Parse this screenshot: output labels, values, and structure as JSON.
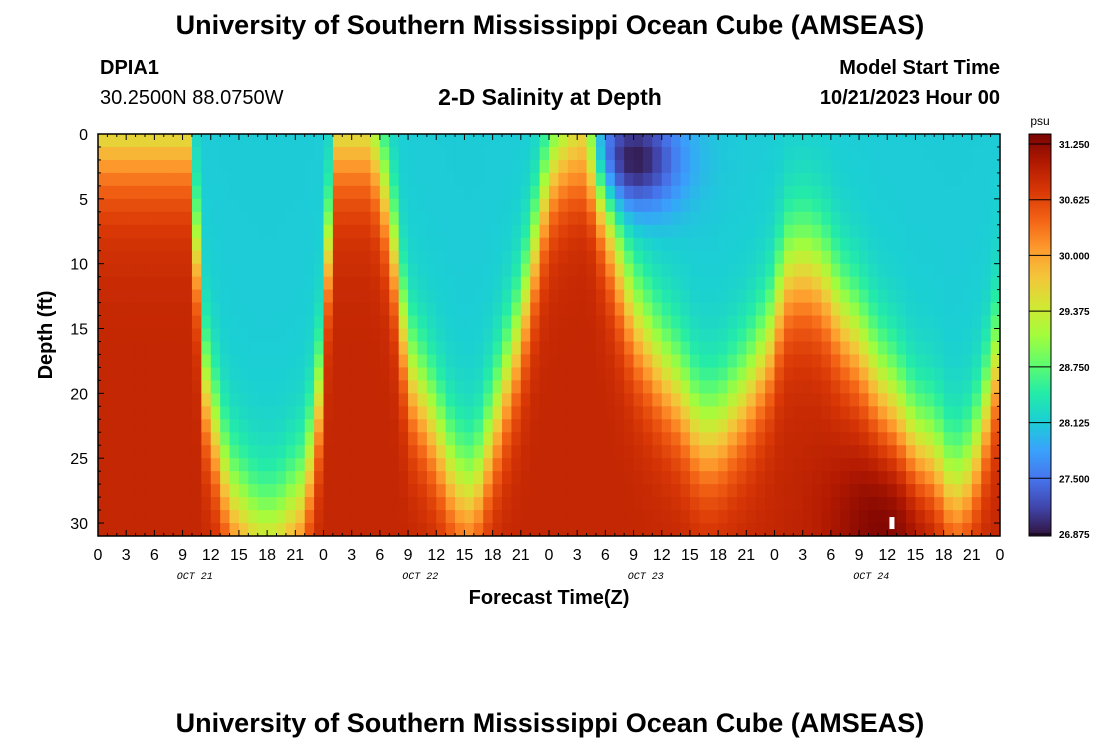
{
  "header": {
    "title": "University of Southern Mississippi Ocean Cube (AMSEAS)",
    "station_name": "DPIA1",
    "station_coords": "30.2500N  88.0750W",
    "plot_title": "2-D Salinity at Depth",
    "start_label": "Model Start Time",
    "start_value": "10/21/2023 Hour 00"
  },
  "footer": {
    "title": "University of Southern Mississippi Ocean Cube (AMSEAS)"
  },
  "chart_data": {
    "type": "heatmap",
    "title": "2-D Salinity at Depth",
    "xlabel": "Forecast Time(Z)",
    "ylabel": "Depth (ft)",
    "x_range_hours": [
      0,
      96
    ],
    "y_range_ft": [
      0,
      31
    ],
    "y_inverted": true,
    "x_ticks": [
      "0",
      "3",
      "6",
      "9",
      "12",
      "15",
      "18",
      "21",
      "0",
      "3",
      "6",
      "9",
      "12",
      "15",
      "18",
      "21",
      "0",
      "3",
      "6",
      "9",
      "12",
      "15",
      "18",
      "21",
      "0",
      "3",
      "6",
      "9",
      "12",
      "15",
      "18",
      "21",
      "0"
    ],
    "y_ticks": [
      "0",
      "5",
      "10",
      "15",
      "20",
      "25",
      "30"
    ],
    "day_labels": [
      "OCT 21",
      "OCT 22",
      "OCT 23",
      "OCT 24"
    ],
    "colorbar": {
      "unit": "psu",
      "min": 26.875,
      "max": 31.25,
      "tick_labels": [
        "31.250",
        "30.625",
        "30.000",
        "29.375",
        "28.750",
        "28.125",
        "27.500",
        "26.875"
      ],
      "colors": [
        "#30123b",
        "#4145ab",
        "#4675ed",
        "#39a2fc",
        "#1bcfd4",
        "#24eca6",
        "#61fc6c",
        "#a4fc3b",
        "#d1e834",
        "#f3c63a",
        "#fe9b2d",
        "#f36315",
        "#d93806",
        "#b11901",
        "#7a0402"
      ]
    },
    "interface_depth_ft": {
      "hours": [
        0,
        4,
        8,
        10,
        11,
        14,
        17,
        19,
        22,
        24,
        25,
        26,
        27,
        29,
        31,
        32,
        33,
        36,
        38,
        40,
        42,
        45,
        48,
        50,
        52,
        53,
        55,
        57,
        60,
        62,
        64,
        66,
        69,
        71,
        72,
        73,
        75,
        77,
        79,
        81,
        83,
        85,
        87,
        89,
        91,
        93,
        95,
        96
      ],
      "depth": [
        0,
        0,
        0,
        0,
        18,
        28,
        31,
        31,
        28,
        18,
        0,
        0,
        0,
        0,
        6,
        12,
        18,
        23,
        27,
        28,
        23,
        15,
        3,
        0,
        -2,
        3,
        9,
        14,
        18,
        20,
        23,
        23,
        20,
        17,
        15,
        11,
        10,
        11,
        14,
        16,
        19,
        21,
        24,
        25,
        28,
        26,
        20,
        16
      ]
    },
    "salinity_model": {
      "high_psu": 30.8,
      "low_psu": 28.1,
      "deep_max_psu": 31.25,
      "surface_min_psu": 26.9,
      "mixing_width_ft": 2.8,
      "deep_max_center": {
        "hour": 84,
        "depth_ft": 30
      },
      "surface_min_center": {
        "hour": 57,
        "depth_ft": 2
      }
    },
    "marker": {
      "hour": 84.5,
      "depth_ft": 30,
      "color": "#ffffff"
    }
  }
}
